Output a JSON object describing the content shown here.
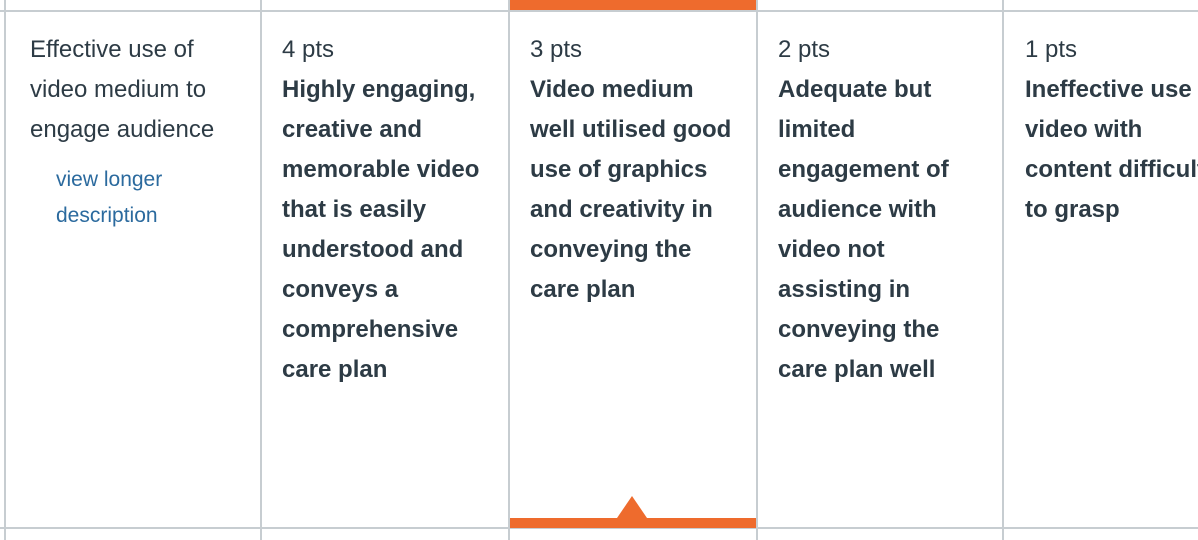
{
  "criterion": {
    "description": "Effective use of video medium to engage audience",
    "view_longer_link": "view longer description"
  },
  "ratings": [
    {
      "points": "4 pts",
      "description": "Highly engaging, creative and memorable video that is easily understood and conveys a comprehensive care plan",
      "selected": false
    },
    {
      "points": "3 pts",
      "description": "Video medium well utilised good use of graphics and creativity in conveying the care plan",
      "selected": true
    },
    {
      "points": "2 pts",
      "description": "Adequate but limited engagement of audience with video not assisting in conveying the care plan well",
      "selected": false
    },
    {
      "points": "1 pts",
      "description": "Ineffective use of video with content difficult to grasp",
      "selected": false
    }
  ],
  "colors": {
    "selected_accent": "#ee6b2d",
    "text": "#2d3b45",
    "link": "#2b6a9e",
    "border": "#c7cdd1"
  }
}
